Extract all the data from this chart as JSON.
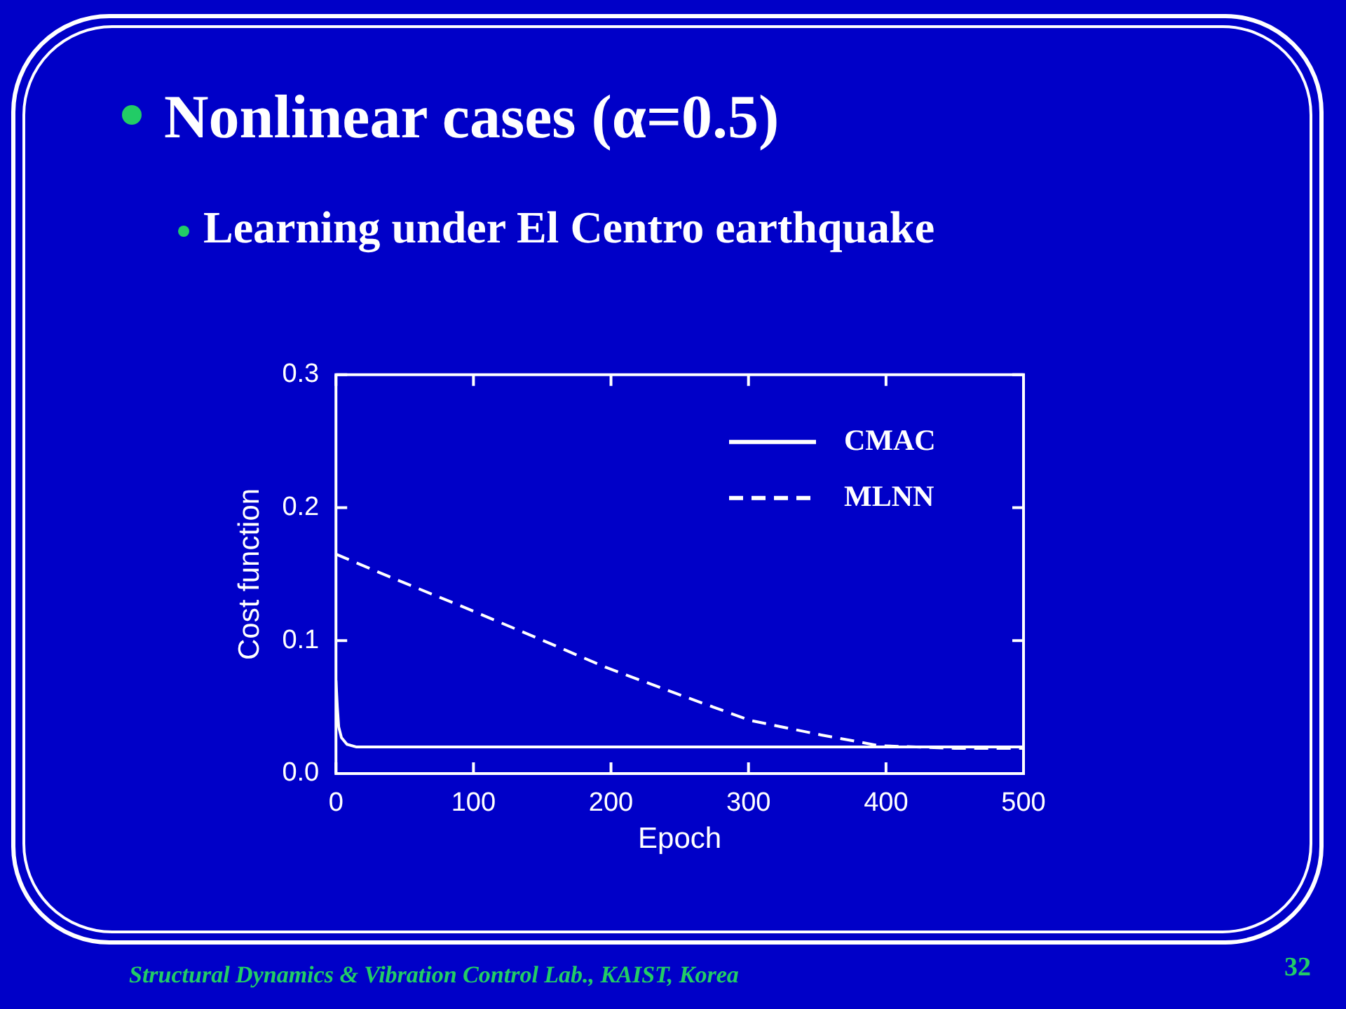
{
  "chart_data": {
    "type": "line",
    "title": "Nonlinear cases (α=0.5)",
    "subtitle": "Learning under El Centro earthquake",
    "xlabel": "Epoch",
    "ylabel": "Cost function",
    "annotations": [
      "Structural Dynamics & Vibration Control Lab., KAIST, Korea",
      "32"
    ],
    "xlim": [
      0,
      500
    ],
    "xticks": [
      0,
      100,
      200,
      300,
      400,
      500
    ],
    "ylim": [
      0,
      0.3
    ],
    "yticks": [
      {
        "value": 0,
        "label": "0.0"
      },
      {
        "value": 0.1,
        "label": "0.1"
      },
      {
        "value": 0.2,
        "label": "0.2"
      },
      {
        "value": 0.3,
        "label": "0.3"
      }
    ],
    "grid": false,
    "legend": "top right",
    "marker": "none",
    "series": [
      {
        "name": "CMAC",
        "color": "#ffffff",
        "line_style": "solid",
        "x": [
          0,
          1,
          2,
          4,
          8,
          15,
          100,
          200,
          300,
          400,
          500
        ],
        "values": [
          0.07,
          0.05,
          0.035,
          0.027,
          0.022,
          0.02,
          0.02,
          0.02,
          0.02,
          0.02,
          0.02
        ]
      },
      {
        "name": "MLNN",
        "color": "#ffffff",
        "line_style": "dashed",
        "x": [
          0,
          39,
          91,
          144,
          196,
          248,
          301,
          353,
          395,
          450,
          500
        ],
        "values": [
          0.165,
          0.148,
          0.126,
          0.103,
          0.08,
          0.06,
          0.04,
          0.029,
          0.021,
          0.019,
          0.019
        ]
      }
    ]
  }
}
